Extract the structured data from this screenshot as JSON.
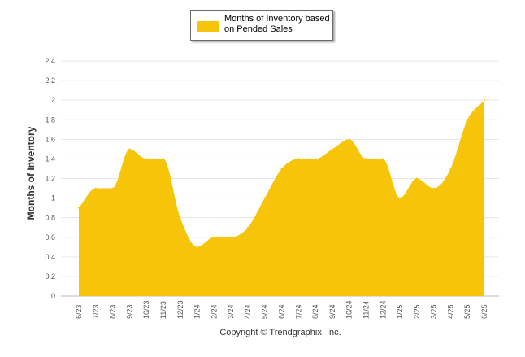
{
  "chart_data": {
    "type": "area",
    "categories": [
      "6/23",
      "7/23",
      "8/23",
      "9/23",
      "10/23",
      "11/23",
      "12/23",
      "1/24",
      "2/24",
      "3/24",
      "4/24",
      "5/24",
      "6/24",
      "7/24",
      "8/24",
      "9/24",
      "10/24",
      "11/24",
      "12/24",
      "1/25",
      "2/25",
      "3/25",
      "4/25",
      "5/25",
      "6/25"
    ],
    "series": [
      {
        "name": "Months of Inventory based on Pended Sales",
        "values": [
          0.9,
          1.1,
          1.1,
          1.5,
          1.4,
          1.4,
          0.8,
          0.5,
          0.6,
          0.6,
          0.7,
          1.0,
          1.3,
          1.4,
          1.4,
          1.5,
          1.6,
          1.4,
          1.4,
          1.0,
          1.2,
          1.1,
          1.3,
          1.8,
          2.0
        ],
        "color": "#F6C409"
      }
    ],
    "ylabel": "Months of Inventory",
    "xlabel": "",
    "ylim": [
      0,
      2.4
    ],
    "yticks": [
      "0",
      "0.2",
      "0.4",
      "0.6",
      "0.8",
      "1",
      "1.2",
      "1.4",
      "1.6",
      "1.8",
      "2",
      "2.2",
      "2.4"
    ],
    "grid": true,
    "legend_position": "top-center"
  },
  "legend": {
    "label_line1": "Months of Inventory based",
    "label_line2": "on Pended Sales"
  },
  "footer": {
    "copyright": "Copyright © Trendgraphix, Inc."
  }
}
